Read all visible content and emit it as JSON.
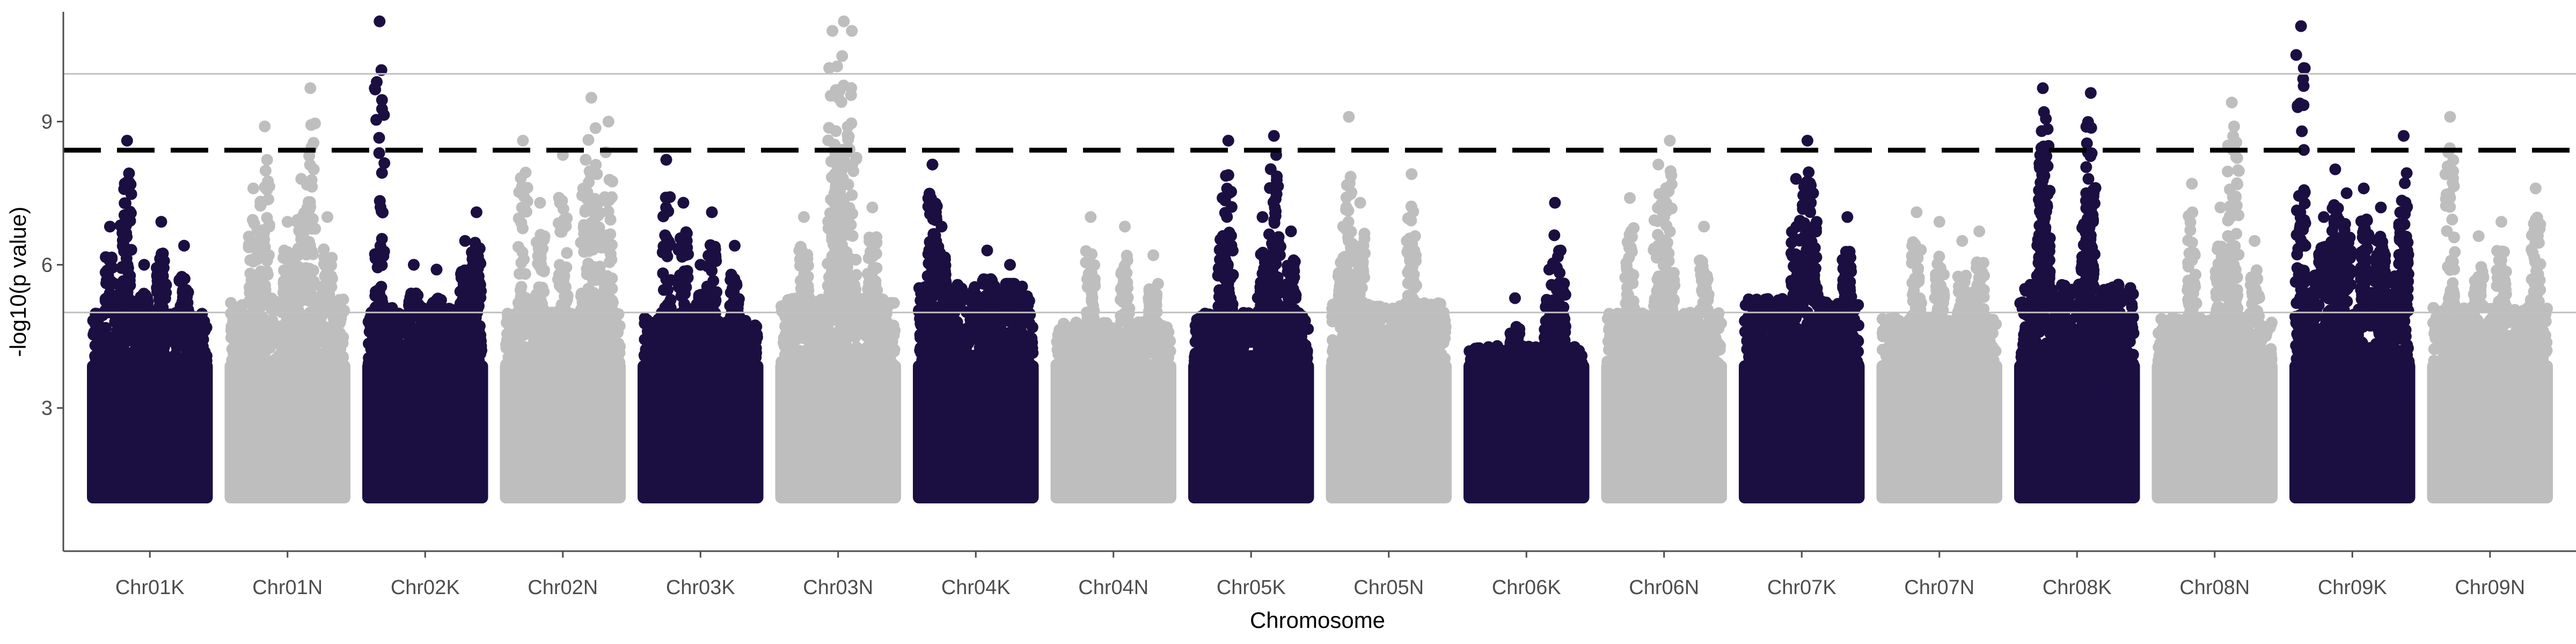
{
  "chart_data": {
    "type": "scatter",
    "xlabel": "Chromosome",
    "ylabel": "-log10(p value)",
    "ylim": [
      0,
      11.3
    ],
    "y_ticks": [
      3,
      6,
      9
    ],
    "x_ticks": [
      "Chr01K",
      "Chr01N",
      "Chr02K",
      "Chr02N",
      "Chr03K",
      "Chr03N",
      "Chr04K",
      "Chr04N",
      "Chr05K",
      "Chr05N",
      "Chr06K",
      "Chr06N",
      "Chr07K",
      "Chr07N",
      "Chr08K",
      "Chr08N",
      "Chr09K",
      "Chr09N"
    ],
    "grid": false,
    "legend": "none",
    "colors": {
      "dark": "#1b0f42",
      "light": "#bebebe",
      "threshold": "#000000",
      "ref_line": "#c0c0c0"
    },
    "reference_lines": [
      {
        "y": 10.0,
        "style": "solid",
        "color": "#c0c0c0"
      },
      {
        "y": 8.4,
        "style": "dashed",
        "color": "#000000"
      },
      {
        "y": 5.0,
        "style": "solid",
        "color": "#c0c0c0"
      }
    ],
    "chromosomes": [
      {
        "name": "Chr01K",
        "color": "dark",
        "base_max": 5.0,
        "peaks": [
          [
            0.3,
            8.6
          ],
          [
            0.28,
            7.7
          ],
          [
            0.6,
            6.9
          ],
          [
            0.15,
            6.8
          ],
          [
            0.45,
            6.0
          ],
          [
            0.8,
            6.4
          ]
        ]
      },
      {
        "name": "Chr01N",
        "color": "light",
        "base_max": 5.3,
        "peaks": [
          [
            0.7,
            9.7
          ],
          [
            0.3,
            8.9
          ],
          [
            0.62,
            7.8
          ],
          [
            0.2,
            7.6
          ],
          [
            0.85,
            7.0
          ],
          [
            0.5,
            6.9
          ]
        ]
      },
      {
        "name": "Chr02K",
        "color": "dark",
        "base_max": 5.1,
        "peaks": [
          [
            0.1,
            11.1
          ],
          [
            0.95,
            7.1
          ],
          [
            0.85,
            6.5
          ],
          [
            0.4,
            6.0
          ],
          [
            0.6,
            5.9
          ]
        ]
      },
      {
        "name": "Chr02N",
        "color": "light",
        "base_max": 5.0,
        "peaks": [
          [
            0.75,
            9.5
          ],
          [
            0.9,
            9.0
          ],
          [
            0.7,
            8.2
          ],
          [
            0.15,
            8.6
          ],
          [
            0.5,
            8.3
          ],
          [
            0.8,
            7.9
          ],
          [
            0.3,
            7.3
          ]
        ]
      },
      {
        "name": "Chr03K",
        "color": "dark",
        "base_max": 4.9,
        "peaks": [
          [
            0.2,
            8.2
          ],
          [
            0.35,
            7.3
          ],
          [
            0.6,
            7.1
          ],
          [
            0.8,
            6.4
          ],
          [
            0.5,
            6.0
          ]
        ]
      },
      {
        "name": "Chr03N",
        "color": "light",
        "base_max": 5.3,
        "peaks": [
          [
            0.55,
            11.1
          ],
          [
            0.45,
            10.9
          ],
          [
            0.62,
            10.9
          ],
          [
            0.5,
            9.5
          ],
          [
            0.48,
            8.8
          ],
          [
            0.52,
            8.3
          ],
          [
            0.8,
            7.2
          ],
          [
            0.2,
            7.0
          ]
        ]
      },
      {
        "name": "Chr04K",
        "color": "dark",
        "base_max": 5.6,
        "peaks": [
          [
            0.12,
            8.1
          ],
          [
            0.15,
            7.1
          ],
          [
            0.2,
            6.8
          ],
          [
            0.6,
            6.3
          ],
          [
            0.8,
            6.0
          ]
        ]
      },
      {
        "name": "Chr04N",
        "color": "light",
        "base_max": 4.8,
        "peaks": [
          [
            0.3,
            7.0
          ],
          [
            0.6,
            6.8
          ],
          [
            0.85,
            6.2
          ]
        ]
      },
      {
        "name": "Chr05K",
        "color": "dark",
        "base_max": 5.0,
        "peaks": [
          [
            0.3,
            8.6
          ],
          [
            0.7,
            8.7
          ],
          [
            0.72,
            8.3
          ],
          [
            0.25,
            7.4
          ],
          [
            0.6,
            7.0
          ],
          [
            0.85,
            6.7
          ]
        ]
      },
      {
        "name": "Chr05N",
        "color": "light",
        "base_max": 5.2,
        "peaks": [
          [
            0.15,
            9.1
          ],
          [
            0.25,
            7.3
          ],
          [
            0.7,
            7.9
          ],
          [
            0.1,
            6.8
          ]
        ]
      },
      {
        "name": "Chr06K",
        "color": "dark",
        "base_max": 4.3,
        "peaks": [
          [
            0.75,
            7.3
          ],
          [
            0.8,
            6.3
          ],
          [
            0.7,
            5.9
          ],
          [
            0.4,
            5.3
          ]
        ]
      },
      {
        "name": "Chr06N",
        "color": "light",
        "base_max": 5.0,
        "peaks": [
          [
            0.55,
            8.6
          ],
          [
            0.45,
            8.1
          ],
          [
            0.2,
            7.4
          ],
          [
            0.5,
            7.0
          ],
          [
            0.85,
            6.8
          ]
        ]
      },
      {
        "name": "Chr07K",
        "color": "dark",
        "base_max": 5.3,
        "peaks": [
          [
            0.55,
            8.6
          ],
          [
            0.45,
            7.8
          ],
          [
            0.6,
            7.5
          ],
          [
            0.58,
            7.3
          ],
          [
            0.9,
            7.0
          ]
        ]
      },
      {
        "name": "Chr07N",
        "color": "light",
        "base_max": 4.9,
        "peaks": [
          [
            0.3,
            7.1
          ],
          [
            0.5,
            6.9
          ],
          [
            0.7,
            6.5
          ],
          [
            0.85,
            6.7
          ]
        ]
      },
      {
        "name": "Chr08K",
        "color": "dark",
        "base_max": 5.6,
        "peaks": [
          [
            0.2,
            9.7
          ],
          [
            0.21,
            9.2
          ],
          [
            0.19,
            8.8
          ],
          [
            0.22,
            8.4
          ],
          [
            0.62,
            9.6
          ],
          [
            0.6,
            7.8
          ],
          [
            0.58,
            7.5
          ]
        ]
      },
      {
        "name": "Chr08N",
        "color": "light",
        "base_max": 4.9,
        "peaks": [
          [
            0.65,
            9.4
          ],
          [
            0.67,
            8.9
          ],
          [
            0.3,
            7.7
          ],
          [
            0.55,
            7.2
          ],
          [
            0.85,
            6.5
          ]
        ]
      },
      {
        "name": "Chr09K",
        "color": "dark",
        "base_max": 5.8,
        "peaks": [
          [
            0.05,
            11.0
          ],
          [
            0.95,
            8.7
          ],
          [
            0.35,
            8.0
          ],
          [
            0.6,
            7.6
          ],
          [
            0.45,
            7.5
          ],
          [
            0.75,
            7.2
          ],
          [
            0.25,
            7.0
          ]
        ]
      },
      {
        "name": "Chr09N",
        "color": "light",
        "base_max": 5.1,
        "peaks": [
          [
            0.15,
            9.1
          ],
          [
            0.9,
            7.6
          ],
          [
            0.6,
            6.9
          ],
          [
            0.4,
            6.6
          ]
        ]
      }
    ]
  }
}
